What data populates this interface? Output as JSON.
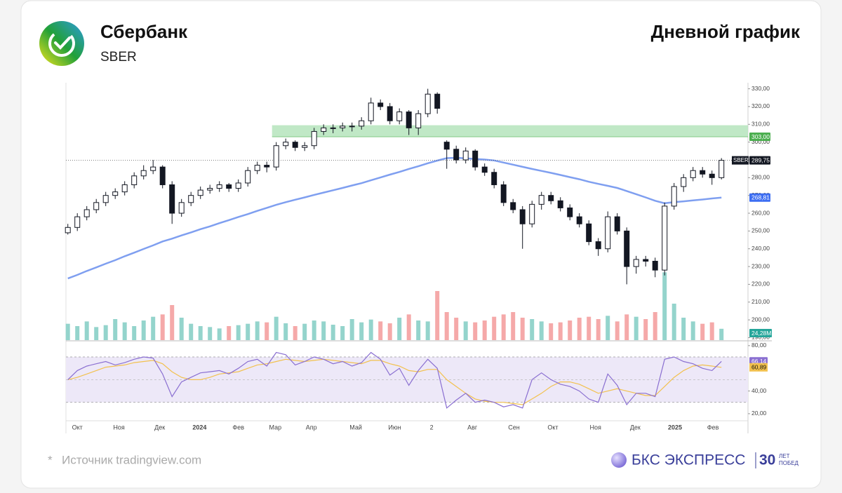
{
  "header": {
    "title": "Сбербанк",
    "ticker": "SBER",
    "chart_kind": "Дневной график"
  },
  "chart_data": {
    "type": "candlestick",
    "color": "#131722",
    "open": [
      249,
      252,
      258,
      262,
      266,
      270,
      272,
      276,
      281,
      284,
      286,
      276,
      260,
      266,
      270,
      273,
      274,
      276,
      274,
      277,
      284,
      287,
      286,
      298,
      300,
      297,
      298,
      306,
      308,
      308,
      309,
      309,
      312,
      322,
      320,
      312,
      317,
      308,
      316,
      327,
      300,
      296,
      290,
      295,
      286,
      283,
      276,
      266,
      262,
      254,
      265,
      270,
      267,
      263,
      258,
      254,
      244,
      240,
      258,
      250,
      230,
      234,
      233,
      228,
      264,
      275,
      280,
      284,
      282,
      280
    ],
    "high": [
      254,
      260,
      264,
      268,
      272,
      274,
      278,
      283,
      287,
      290,
      287,
      278,
      268,
      272,
      275,
      276,
      278,
      277,
      279,
      286,
      289,
      289,
      300,
      302,
      301,
      300,
      308,
      310,
      310,
      311,
      311,
      314,
      325,
      324,
      322,
      319,
      318,
      318,
      330,
      328,
      301,
      298,
      297,
      296,
      288,
      285,
      278,
      268,
      264,
      267,
      272,
      272,
      269,
      265,
      260,
      256,
      246,
      261,
      260,
      252,
      236,
      236,
      235,
      266,
      277,
      282,
      286,
      286,
      284,
      291
    ],
    "low": [
      248,
      250,
      256,
      260,
      264,
      268,
      270,
      274,
      279,
      282,
      274,
      254,
      258,
      264,
      268,
      271,
      272,
      272,
      272,
      275,
      282,
      283,
      284,
      296,
      295,
      295,
      296,
      304,
      305,
      306,
      306,
      307,
      310,
      318,
      310,
      310,
      304,
      304,
      314,
      316,
      285,
      288,
      288,
      284,
      281,
      274,
      264,
      260,
      240,
      252,
      262,
      265,
      261,
      256,
      252,
      242,
      236,
      238,
      248,
      220,
      226,
      230,
      224,
      225,
      262,
      272,
      278,
      280,
      276,
      279
    ],
    "close": [
      252,
      258,
      262,
      266,
      270,
      272,
      276,
      281,
      284,
      286,
      276,
      260,
      266,
      270,
      273,
      274,
      276,
      274,
      277,
      284,
      287,
      286,
      298,
      300,
      297,
      298,
      306,
      308,
      308,
      309,
      309,
      312,
      322,
      320,
      312,
      317,
      308,
      316,
      327,
      319,
      296,
      290,
      295,
      286,
      283,
      276,
      266,
      262,
      254,
      265,
      270,
      267,
      263,
      258,
      254,
      244,
      240,
      258,
      250,
      230,
      234,
      233,
      228,
      264,
      275,
      280,
      284,
      282,
      280,
      289.75
    ],
    "last_label": "289,75",
    "xlim": [
      -0.2,
      71.8
    ],
    "xticks": [
      {
        "value": 1.0,
        "label": "Окт"
      },
      {
        "value": 5.4,
        "label": "Ноя"
      },
      {
        "value": 9.7,
        "label": "Дек"
      },
      {
        "value": 13.9,
        "label": "2024"
      },
      {
        "value": 18,
        "label": "Фев"
      },
      {
        "value": 21.9,
        "label": "Мар"
      },
      {
        "value": 25.7,
        "label": "Апр"
      },
      {
        "value": 30.4,
        "label": "Май"
      },
      {
        "value": 34.5,
        "label": "Июн"
      },
      {
        "value": 38.4,
        "label": "2"
      },
      {
        "value": 42.7,
        "label": "Авг"
      },
      {
        "value": 47.1,
        "label": "Сен"
      },
      {
        "value": 51.2,
        "label": "Окт"
      },
      {
        "value": 55.7,
        "label": "Ноя"
      },
      {
        "value": 59.9,
        "label": "Дек"
      },
      {
        "value": 64.1,
        "label": "2025"
      },
      {
        "value": 68.1,
        "label": "Фев"
      }
    ],
    "ylim": [
      189,
      333
    ],
    "yticks": [
      {
        "value": 190,
        "label": "190,00"
      },
      {
        "value": 200,
        "label": "200,00"
      },
      {
        "value": 210,
        "label": "210,00"
      },
      {
        "value": 220,
        "label": "220,00"
      },
      {
        "value": 230,
        "label": "230,00"
      },
      {
        "value": 240,
        "label": "240,00"
      },
      {
        "value": 250,
        "label": "250,00"
      },
      {
        "value": 260,
        "label": "260,00"
      },
      {
        "value": 270,
        "label": "270,00"
      },
      {
        "value": 280,
        "label": "280,00"
      },
      {
        "value": 290,
        "label": "290,00"
      },
      {
        "value": 300,
        "label": "300,00"
      },
      {
        "value": 310,
        "label": "310,00"
      },
      {
        "value": 320,
        "label": "320,00"
      },
      {
        "value": 330,
        "label": "330,00"
      }
    ],
    "ma": {
      "color": "#7f9ff0",
      "values": [
        223.3,
        225.3,
        227.5,
        229.5,
        231.6,
        233.6,
        235.8,
        237.8,
        239.9,
        241.9,
        244.1,
        245.7,
        247.5,
        249.2,
        251,
        252.6,
        254.4,
        256.1,
        257.9,
        259.5,
        261.3,
        263,
        264.7,
        266.2,
        267.6,
        268.9,
        270.3,
        271.6,
        272.9,
        274.2,
        275.6,
        276.9,
        278.5,
        280.1,
        281.7,
        283.2,
        284.9,
        286.4,
        288.1,
        289.6,
        291,
        291.2,
        290.9,
        290.5,
        290.2,
        289.7,
        288.5,
        287.3,
        286.1,
        284.9,
        283.8,
        282.7,
        281.5,
        280.3,
        279.1,
        277.7,
        276.5,
        275.4,
        274.2,
        272.5,
        270.7,
        268.9,
        267,
        265.6,
        266.2,
        266.7,
        267.2,
        267.7,
        268.3,
        268.81
      ],
      "last_label": "268,81",
      "badge_color": "#3d6ef2"
    },
    "zone": {
      "low": 303,
      "high": 309.5,
      "color": "#b9e6c0",
      "badge_color": "#4caf50",
      "label": "303,00"
    },
    "volume": {
      "up_color": "#94d4cc",
      "down_color": "#f5a9a9",
      "ylim": [
        0,
        150
      ],
      "badge_color": "#26a69a",
      "values": [
        35,
        30,
        40,
        28,
        32,
        45,
        38,
        30,
        42,
        50,
        55,
        75,
        48,
        35,
        30,
        28,
        25,
        30,
        32,
        35,
        40,
        38,
        50,
        36,
        30,
        35,
        42,
        40,
        33,
        30,
        45,
        38,
        44,
        40,
        36,
        48,
        55,
        42,
        40,
        105,
        60,
        48,
        40,
        38,
        42,
        50,
        55,
        60,
        48,
        45,
        40,
        36,
        38,
        42,
        48,
        50,
        45,
        52,
        40,
        55,
        50,
        45,
        60,
        145,
        78,
        48,
        40,
        35,
        38,
        24.28
      ],
      "last_label": "24,28M"
    },
    "rsi": {
      "color": "#8a6fd1",
      "ma_color": "#f2c14e",
      "band_color": "#ede8f8",
      "ylim": [
        15,
        83
      ],
      "band": [
        30,
        70
      ],
      "midline": 50,
      "yticks": [
        {
          "value": 20,
          "label": "20,00"
        },
        {
          "value": 40,
          "label": "40,00"
        },
        {
          "value": 80,
          "label": "80,00"
        }
      ],
      "values": [
        50,
        58,
        62,
        64,
        66,
        63,
        65,
        68,
        70,
        69,
        55,
        35,
        48,
        52,
        56,
        57,
        58,
        55,
        60,
        66,
        68,
        62,
        74,
        72,
        63,
        66,
        70,
        68,
        64,
        66,
        62,
        65,
        74,
        68,
        54,
        60,
        45,
        58,
        68,
        60,
        25,
        32,
        38,
        30,
        32,
        30,
        26,
        28,
        25,
        50,
        56,
        50,
        46,
        44,
        40,
        33,
        30,
        55,
        45,
        28,
        38,
        38,
        35,
        68,
        70,
        66,
        64,
        60,
        58,
        66.14
      ],
      "last_label": "66,14",
      "ma": [
        50,
        52,
        55,
        58,
        61,
        62,
        63,
        65,
        66,
        67,
        64,
        57,
        52,
        50,
        50,
        52,
        55,
        56,
        57,
        60,
        63,
        64,
        66,
        68,
        67,
        66,
        67,
        68,
        67,
        66,
        65,
        64,
        67,
        67,
        64,
        62,
        58,
        57,
        59,
        59,
        50,
        44,
        38,
        33,
        31,
        30,
        30,
        29,
        28,
        33,
        38,
        44,
        48,
        48,
        46,
        42,
        38,
        40,
        42,
        40,
        38,
        36,
        36,
        44,
        52,
        58,
        62,
        63,
        62,
        60.89
      ],
      "ma_last_label": "60,89"
    }
  },
  "footer": {
    "source_mark": "*",
    "source": "Источник tradingview.com",
    "brand": "БКС ЭКСПРЕСС",
    "years": "30",
    "years_word1": "ЛЕТ",
    "years_word2": "ПОБЕД"
  }
}
